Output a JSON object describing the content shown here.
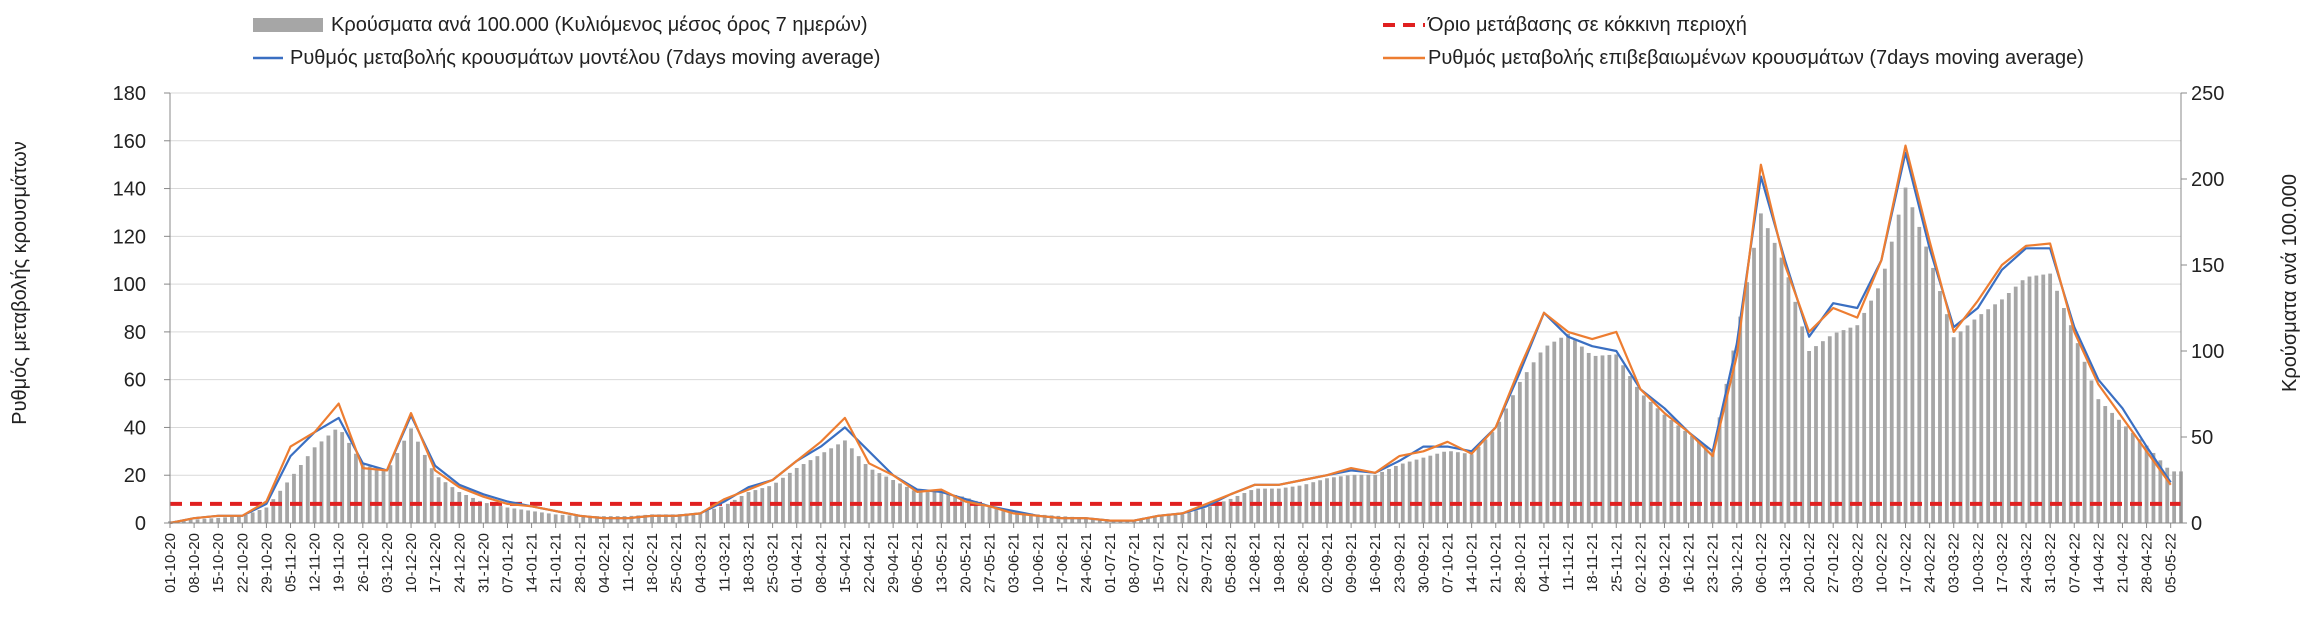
{
  "chart_data": {
    "type": "bar+line",
    "title": "",
    "y_left_label": "Ρυθμός μεταβολής κρουσμάτων",
    "y_right_label": "Κρούσματα ανά 100.000",
    "y_left_lim": [
      0,
      180
    ],
    "y_left_ticks": [
      0,
      20,
      40,
      60,
      80,
      100,
      120,
      140,
      160,
      180
    ],
    "y_right_lim": [
      0,
      250
    ],
    "y_right_ticks": [
      0,
      50,
      100,
      150,
      200,
      250
    ],
    "grid": "horizontal",
    "legend_position": "top",
    "x_start": "2020-10-01",
    "x_end": "2022-05-08",
    "x_tick_labels": [
      "01-10-20",
      "08-10-20",
      "15-10-20",
      "22-10-20",
      "29-10-20",
      "05-11-20",
      "12-11-20",
      "19-11-20",
      "26-11-20",
      "03-12-20",
      "10-12-20",
      "17-12-20",
      "24-12-20",
      "31-12-20",
      "07-01-21",
      "14-01-21",
      "21-01-21",
      "28-01-21",
      "04-02-21",
      "11-02-21",
      "18-02-21",
      "25-02-21",
      "04-03-21",
      "11-03-21",
      "18-03-21",
      "25-03-21",
      "01-04-21",
      "08-04-21",
      "15-04-21",
      "22-04-21",
      "29-04-21",
      "06-05-21",
      "13-05-21",
      "20-05-21",
      "27-05-21",
      "03-06-21",
      "10-06-21",
      "17-06-21",
      "24-06-21",
      "01-07-21",
      "08-07-21",
      "15-07-21",
      "22-07-21",
      "29-07-21",
      "05-08-21",
      "12-08-21",
      "19-08-21",
      "26-08-21",
      "02-09-21",
      "09-09-21",
      "16-09-21",
      "23-09-21",
      "30-09-21",
      "07-10-21",
      "14-10-21",
      "21-10-21",
      "28-10-21",
      "04-11-21",
      "11-11-21",
      "18-11-21",
      "25-11-21",
      "02-12-21",
      "09-12-21",
      "16-12-21",
      "23-12-21",
      "30-12-21",
      "06-01-22",
      "13-01-22",
      "20-01-22",
      "27-01-22",
      "03-02-22",
      "10-02-22",
      "17-02-22",
      "24-02-22",
      "03-03-22",
      "10-03-22",
      "17-03-22",
      "24-03-22",
      "31-03-22",
      "07-04-22",
      "14-04-22",
      "21-04-22",
      "28-04-22",
      "05-05-22"
    ],
    "threshold": {
      "name": "Όριο μετάβασης σε κόκκινη περιοχή",
      "value": 8,
      "axis": "left",
      "color": "#e02020"
    },
    "series": [
      {
        "name": "Κρούσματα ανά 100.000 (Κυλιόμενος μέσος όρος 7 ημερών)",
        "type": "bar",
        "axis": "right",
        "color": "#a6a6a6",
        "points": [
          [
            "2020-10-01",
            1
          ],
          [
            "2020-10-08",
            2
          ],
          [
            "2020-10-15",
            3
          ],
          [
            "2020-10-22",
            4
          ],
          [
            "2020-10-29",
            9
          ],
          [
            "2020-11-05",
            26
          ],
          [
            "2020-11-12",
            44
          ],
          [
            "2020-11-19",
            56
          ],
          [
            "2020-11-26",
            34
          ],
          [
            "2020-12-03",
            30
          ],
          [
            "2020-12-10",
            55
          ],
          [
            "2020-12-17",
            28
          ],
          [
            "2020-12-24",
            18
          ],
          [
            "2020-12-31",
            12
          ],
          [
            "2021-01-07",
            9
          ],
          [
            "2021-01-14",
            7
          ],
          [
            "2021-01-21",
            5
          ],
          [
            "2021-01-28",
            4
          ],
          [
            "2021-02-04",
            4
          ],
          [
            "2021-02-11",
            4
          ],
          [
            "2021-02-18",
            5
          ],
          [
            "2021-02-25",
            5
          ],
          [
            "2021-03-04",
            6
          ],
          [
            "2021-03-11",
            10
          ],
          [
            "2021-03-18",
            18
          ],
          [
            "2021-03-25",
            22
          ],
          [
            "2021-04-01",
            32
          ],
          [
            "2021-04-08",
            40
          ],
          [
            "2021-04-15",
            48
          ],
          [
            "2021-04-22",
            32
          ],
          [
            "2021-04-29",
            25
          ],
          [
            "2021-05-06",
            18
          ],
          [
            "2021-05-13",
            18
          ],
          [
            "2021-05-20",
            15
          ],
          [
            "2021-05-27",
            10
          ],
          [
            "2021-06-03",
            7
          ],
          [
            "2021-06-10",
            5
          ],
          [
            "2021-06-17",
            4
          ],
          [
            "2021-06-24",
            3
          ],
          [
            "2021-07-01",
            2
          ],
          [
            "2021-07-08",
            1
          ],
          [
            "2021-07-15",
            4
          ],
          [
            "2021-07-22",
            5
          ],
          [
            "2021-07-29",
            9
          ],
          [
            "2021-08-05",
            14
          ],
          [
            "2021-08-12",
            20
          ],
          [
            "2021-08-19",
            20
          ],
          [
            "2021-08-26",
            22
          ],
          [
            "2021-09-02",
            26
          ],
          [
            "2021-09-09",
            28
          ],
          [
            "2021-09-16",
            28
          ],
          [
            "2021-09-23",
            34
          ],
          [
            "2021-09-30",
            38
          ],
          [
            "2021-10-07",
            42
          ],
          [
            "2021-10-14",
            40
          ],
          [
            "2021-10-21",
            55
          ],
          [
            "2021-10-28",
            82
          ],
          [
            "2021-11-04",
            102
          ],
          [
            "2021-11-11",
            110
          ],
          [
            "2021-11-18",
            97
          ],
          [
            "2021-11-25",
            98
          ],
          [
            "2021-12-02",
            76
          ],
          [
            "2021-12-09",
            63
          ],
          [
            "2021-12-16",
            52
          ],
          [
            "2021-12-23",
            42
          ],
          [
            "2021-12-30",
            110
          ],
          [
            "2022-01-06",
            180
          ],
          [
            "2022-01-13",
            150
          ],
          [
            "2022-01-20",
            100
          ],
          [
            "2022-01-27",
            110
          ],
          [
            "2022-02-03",
            115
          ],
          [
            "2022-02-10",
            140
          ],
          [
            "2022-02-17",
            195
          ],
          [
            "2022-02-24",
            155
          ],
          [
            "2022-03-03",
            108
          ],
          [
            "2022-03-10",
            120
          ],
          [
            "2022-03-17",
            130
          ],
          [
            "2022-03-24",
            143
          ],
          [
            "2022-03-31",
            145
          ],
          [
            "2022-04-07",
            110
          ],
          [
            "2022-04-14",
            72
          ],
          [
            "2022-04-21",
            58
          ],
          [
            "2022-04-28",
            45
          ],
          [
            "2022-05-05",
            30
          ]
        ]
      },
      {
        "name": "Ρυθμός μεταβολής κρουσμάτων μοντέλου (7days moving average)",
        "type": "line",
        "axis": "left",
        "color": "#3a6fc2",
        "points": [
          [
            "2020-10-01",
            0
          ],
          [
            "2020-10-08",
            2
          ],
          [
            "2020-10-15",
            3
          ],
          [
            "2020-10-22",
            3
          ],
          [
            "2020-10-29",
            8
          ],
          [
            "2020-11-05",
            28
          ],
          [
            "2020-11-12",
            38
          ],
          [
            "2020-11-19",
            44
          ],
          [
            "2020-11-26",
            25
          ],
          [
            "2020-12-03",
            22
          ],
          [
            "2020-12-10",
            45
          ],
          [
            "2020-12-17",
            24
          ],
          [
            "2020-12-24",
            16
          ],
          [
            "2020-12-31",
            12
          ],
          [
            "2021-01-07",
            9
          ],
          [
            "2021-01-14",
            7
          ],
          [
            "2021-01-21",
            5
          ],
          [
            "2021-01-28",
            3
          ],
          [
            "2021-02-04",
            2
          ],
          [
            "2021-02-11",
            2
          ],
          [
            "2021-02-18",
            3
          ],
          [
            "2021-02-25",
            3
          ],
          [
            "2021-03-04",
            4
          ],
          [
            "2021-03-11",
            9
          ],
          [
            "2021-03-18",
            15
          ],
          [
            "2021-03-25",
            18
          ],
          [
            "2021-04-01",
            26
          ],
          [
            "2021-04-08",
            32
          ],
          [
            "2021-04-15",
            40
          ],
          [
            "2021-04-22",
            30
          ],
          [
            "2021-04-29",
            20
          ],
          [
            "2021-05-06",
            14
          ],
          [
            "2021-05-13",
            13
          ],
          [
            "2021-05-20",
            10
          ],
          [
            "2021-05-27",
            7
          ],
          [
            "2021-06-03",
            5
          ],
          [
            "2021-06-10",
            3
          ],
          [
            "2021-06-17",
            2
          ],
          [
            "2021-06-24",
            2
          ],
          [
            "2021-07-01",
            1
          ],
          [
            "2021-07-08",
            1
          ],
          [
            "2021-07-15",
            3
          ],
          [
            "2021-07-22",
            4
          ],
          [
            "2021-07-29",
            7
          ],
          [
            "2021-08-05",
            12
          ],
          [
            "2021-08-12",
            16
          ],
          [
            "2021-08-19",
            16
          ],
          [
            "2021-08-26",
            18
          ],
          [
            "2021-09-02",
            20
          ],
          [
            "2021-09-09",
            22
          ],
          [
            "2021-09-16",
            21
          ],
          [
            "2021-09-23",
            26
          ],
          [
            "2021-09-30",
            32
          ],
          [
            "2021-10-07",
            32
          ],
          [
            "2021-10-14",
            30
          ],
          [
            "2021-10-21",
            40
          ],
          [
            "2021-10-28",
            63
          ],
          [
            "2021-11-04",
            88
          ],
          [
            "2021-11-11",
            78
          ],
          [
            "2021-11-18",
            74
          ],
          [
            "2021-11-25",
            72
          ],
          [
            "2021-12-02",
            56
          ],
          [
            "2021-12-09",
            48
          ],
          [
            "2021-12-16",
            38
          ],
          [
            "2021-12-23",
            30
          ],
          [
            "2021-12-30",
            75
          ],
          [
            "2022-01-06",
            145
          ],
          [
            "2022-01-13",
            110
          ],
          [
            "2022-01-20",
            78
          ],
          [
            "2022-01-27",
            92
          ],
          [
            "2022-02-03",
            90
          ],
          [
            "2022-02-10",
            110
          ],
          [
            "2022-02-17",
            155
          ],
          [
            "2022-02-24",
            115
          ],
          [
            "2022-03-03",
            82
          ],
          [
            "2022-03-10",
            90
          ],
          [
            "2022-03-17",
            106
          ],
          [
            "2022-03-24",
            115
          ],
          [
            "2022-03-31",
            115
          ],
          [
            "2022-04-07",
            82
          ],
          [
            "2022-04-14",
            60
          ],
          [
            "2022-04-21",
            48
          ],
          [
            "2022-04-28",
            32
          ],
          [
            "2022-05-05",
            17
          ]
        ]
      },
      {
        "name": "Ρυθμός μεταβολής επιβεβαιωμένων κρουσμάτων (7days moving average)",
        "type": "line",
        "axis": "left",
        "color": "#ed7d31",
        "points": [
          [
            "2020-10-01",
            0
          ],
          [
            "2020-10-08",
            2
          ],
          [
            "2020-10-15",
            3
          ],
          [
            "2020-10-22",
            3
          ],
          [
            "2020-10-29",
            9
          ],
          [
            "2020-11-05",
            32
          ],
          [
            "2020-11-12",
            38
          ],
          [
            "2020-11-19",
            50
          ],
          [
            "2020-11-26",
            23
          ],
          [
            "2020-12-03",
            22
          ],
          [
            "2020-12-10",
            46
          ],
          [
            "2020-12-17",
            22
          ],
          [
            "2020-12-24",
            15
          ],
          [
            "2020-12-31",
            11
          ],
          [
            "2021-01-07",
            8
          ],
          [
            "2021-01-14",
            7
          ],
          [
            "2021-01-21",
            5
          ],
          [
            "2021-01-28",
            3
          ],
          [
            "2021-02-04",
            2
          ],
          [
            "2021-02-11",
            2
          ],
          [
            "2021-02-18",
            3
          ],
          [
            "2021-02-25",
            3
          ],
          [
            "2021-03-04",
            4
          ],
          [
            "2021-03-11",
            10
          ],
          [
            "2021-03-18",
            14
          ],
          [
            "2021-03-25",
            18
          ],
          [
            "2021-04-01",
            26
          ],
          [
            "2021-04-08",
            34
          ],
          [
            "2021-04-15",
            44
          ],
          [
            "2021-04-22",
            25
          ],
          [
            "2021-04-29",
            20
          ],
          [
            "2021-05-06",
            13
          ],
          [
            "2021-05-13",
            14
          ],
          [
            "2021-05-20",
            9
          ],
          [
            "2021-05-27",
            7
          ],
          [
            "2021-06-03",
            4
          ],
          [
            "2021-06-10",
            3
          ],
          [
            "2021-06-17",
            2
          ],
          [
            "2021-06-24",
            2
          ],
          [
            "2021-07-01",
            1
          ],
          [
            "2021-07-08",
            1
          ],
          [
            "2021-07-15",
            3
          ],
          [
            "2021-07-22",
            4
          ],
          [
            "2021-07-29",
            8
          ],
          [
            "2021-08-05",
            12
          ],
          [
            "2021-08-12",
            16
          ],
          [
            "2021-08-19",
            16
          ],
          [
            "2021-08-26",
            18
          ],
          [
            "2021-09-02",
            20
          ],
          [
            "2021-09-09",
            23
          ],
          [
            "2021-09-16",
            21
          ],
          [
            "2021-09-23",
            28
          ],
          [
            "2021-09-30",
            30
          ],
          [
            "2021-10-07",
            34
          ],
          [
            "2021-10-14",
            29
          ],
          [
            "2021-10-21",
            40
          ],
          [
            "2021-10-28",
            65
          ],
          [
            "2021-11-04",
            88
          ],
          [
            "2021-11-11",
            80
          ],
          [
            "2021-11-18",
            77
          ],
          [
            "2021-11-25",
            80
          ],
          [
            "2021-12-02",
            56
          ],
          [
            "2021-12-09",
            46
          ],
          [
            "2021-12-16",
            38
          ],
          [
            "2021-12-23",
            28
          ],
          [
            "2021-12-30",
            70
          ],
          [
            "2022-01-06",
            150
          ],
          [
            "2022-01-13",
            108
          ],
          [
            "2022-01-20",
            80
          ],
          [
            "2022-01-27",
            90
          ],
          [
            "2022-02-03",
            86
          ],
          [
            "2022-02-10",
            110
          ],
          [
            "2022-02-17",
            158
          ],
          [
            "2022-02-24",
            118
          ],
          [
            "2022-03-03",
            80
          ],
          [
            "2022-03-10",
            93
          ],
          [
            "2022-03-17",
            108
          ],
          [
            "2022-03-24",
            116
          ],
          [
            "2022-03-31",
            117
          ],
          [
            "2022-04-07",
            80
          ],
          [
            "2022-04-14",
            58
          ],
          [
            "2022-04-21",
            44
          ],
          [
            "2022-04-28",
            30
          ],
          [
            "2022-05-05",
            16
          ]
        ]
      }
    ]
  }
}
